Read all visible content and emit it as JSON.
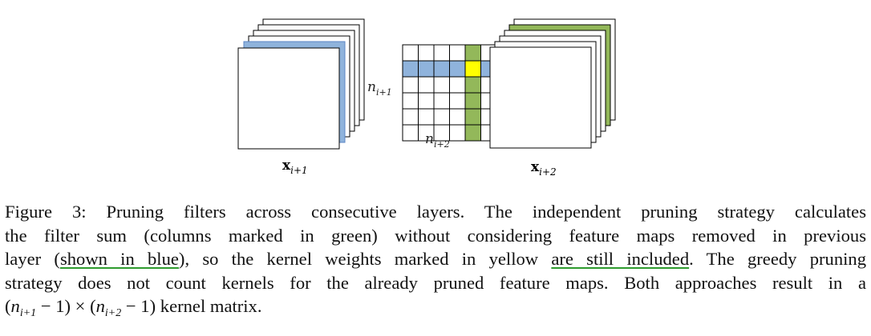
{
  "colors": {
    "blue": "#8fb3dc",
    "blue_edge": "#5b86c4",
    "green": "#93b85a",
    "yellow": "#ffff00",
    "stroke": "#000000",
    "underline": "#2e9b2e"
  },
  "figure": {
    "left_stack_label": {
      "main": "x",
      "sub": "i+1"
    },
    "right_stack_label": {
      "main": "x",
      "sub": "i+2"
    },
    "matrix_side_label": {
      "main": "n",
      "sub": "i+1"
    },
    "matrix_bottom_label": {
      "main": "n",
      "sub": "i+2"
    },
    "matrix": {
      "rows": 6,
      "cols": 6,
      "highlight_row": 1,
      "highlight_col": 4
    }
  },
  "caption": {
    "line1": "Figure 3: Pruning filters across consecutive layers. The independent pruning strategy calculates",
    "line2": "the filter sum (columns marked in green) without considering feature maps removed in previous",
    "line3_a": "layer (",
    "line3_ul1": "shown in blue",
    "line3_b": "), so the kernel weights marked in yellow ",
    "line3_ul2": "are still included",
    "line3_c": ". The greedy pruning",
    "line4": "strategy does not count kernels for the already pruned feature maps. Both approaches result in a",
    "line5_open1": "(",
    "line5_n1": "n",
    "line5_sub1": "i+1",
    "line5_m1": " − 1) × (",
    "line5_n2": "n",
    "line5_sub2": "i+2",
    "line5_m2": " − 1)",
    "line5_tail": " kernel matrix."
  }
}
